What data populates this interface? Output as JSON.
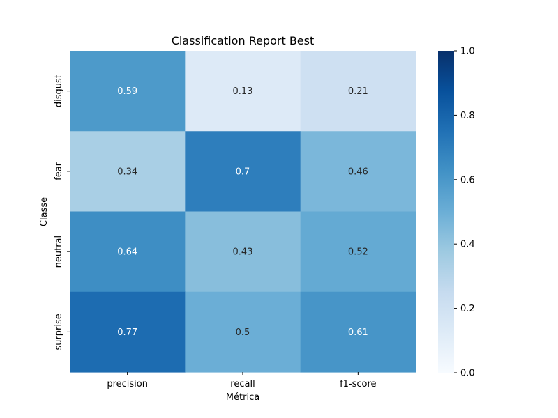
{
  "chart_data": {
    "type": "heatmap",
    "title": "Classification Report Best",
    "xlabel": "Métrica",
    "ylabel": "Classe",
    "columns": [
      "precision",
      "recall",
      "f1-score"
    ],
    "rows": [
      "disgust",
      "fear",
      "neutral",
      "surprise"
    ],
    "values": [
      [
        0.59,
        0.13,
        0.21
      ],
      [
        0.34,
        0.7,
        0.46
      ],
      [
        0.64,
        0.43,
        0.52
      ],
      [
        0.77,
        0.5,
        0.61
      ]
    ],
    "annotations": [
      [
        "0.59",
        "0.13",
        "0.21"
      ],
      [
        "0.34",
        "0.7",
        "0.46"
      ],
      [
        "0.64",
        "0.43",
        "0.52"
      ],
      [
        "0.77",
        "0.5",
        "0.61"
      ]
    ],
    "vmin": 0.0,
    "vmax": 1.0,
    "colormap": "Blues",
    "colorbar": {
      "ticks": [
        0.0,
        0.2,
        0.4,
        0.6,
        0.8,
        1.0
      ],
      "tick_labels": [
        "0.0",
        "0.2",
        "0.4",
        "0.6",
        "0.8",
        "1.0"
      ]
    },
    "grid": false
  }
}
